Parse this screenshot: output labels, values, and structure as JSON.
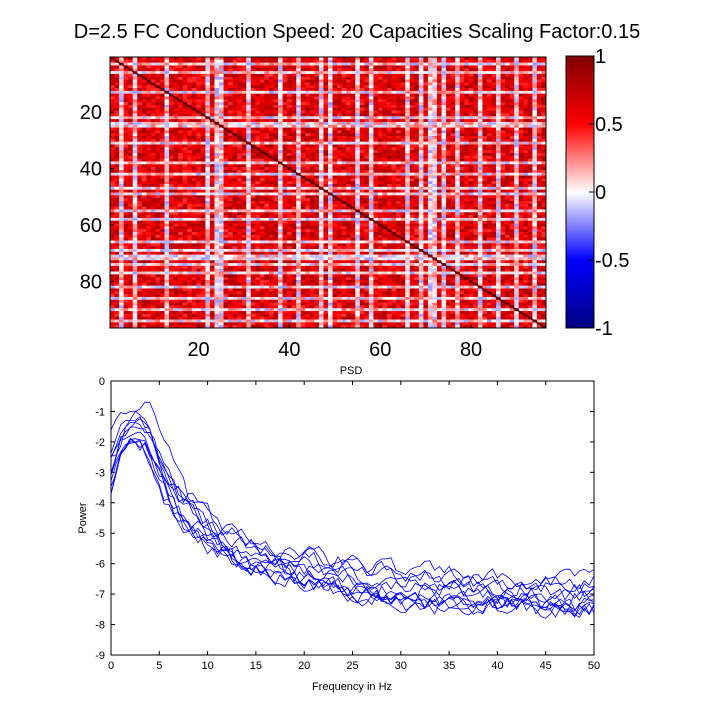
{
  "figure_title": "D=2.5 FC Conduction Speed: 20  Capacities Scaling Factor:0.15",
  "chart_data": [
    {
      "type": "heatmap",
      "title": "",
      "size": 96,
      "xticks": [
        20,
        40,
        60,
        80
      ],
      "yticks": [
        20,
        40,
        60,
        80
      ],
      "xlim": [
        0.5,
        96.5
      ],
      "ylim": [
        0.5,
        96.5
      ],
      "diagonal_value": 1,
      "colorbar": {
        "ticks": [
          1,
          0.5,
          0,
          -0.5,
          -1
        ],
        "tick_labels": [
          "1",
          "0.5",
          "0",
          "-0.5",
          "-1"
        ],
        "range": [
          -1,
          1
        ],
        "colormap": [
          "#800000",
          "#ff0000",
          "#ffffff",
          "#0000ff",
          "#000080"
        ]
      },
      "description_values": {
        "weak_rows": [
          3,
          6,
          13,
          22,
          24,
          25,
          31,
          38,
          42,
          47,
          49,
          55,
          58,
          66,
          69,
          71,
          72,
          74,
          77,
          82,
          86,
          90,
          94
        ],
        "typical_range": [
          0.4,
          0.85
        ],
        "weak_range": [
          -0.2,
          0.3
        ]
      }
    },
    {
      "type": "line",
      "title": "PSD",
      "xlabel": "Frequency in Hz",
      "ylabel": "Power",
      "xlim": [
        0,
        50
      ],
      "ylim": [
        -9,
        0
      ],
      "xticks": [
        0,
        5,
        10,
        15,
        20,
        25,
        30,
        35,
        40,
        45,
        50
      ],
      "yticks": [
        0,
        -1,
        -2,
        -3,
        -4,
        -5,
        -6,
        -7,
        -8,
        -9
      ],
      "line_color": "#0000ff",
      "series_count": 12,
      "envelope": {
        "x": [
          0,
          1,
          2,
          3,
          4,
          5,
          6,
          8,
          10,
          12,
          15,
          20,
          25,
          30,
          35,
          40,
          45,
          50
        ],
        "mean": [
          -3.0,
          -1.9,
          -1.5,
          -1.5,
          -1.9,
          -2.6,
          -3.3,
          -4.3,
          -4.9,
          -5.3,
          -5.8,
          -6.2,
          -6.5,
          -6.8,
          -6.9,
          -7.0,
          -7.1,
          -7.1
        ],
        "spread": [
          0.7,
          0.6,
          0.5,
          0.5,
          0.6,
          0.6,
          0.6,
          0.55,
          0.5,
          0.5,
          0.5,
          0.55,
          0.55,
          0.6,
          0.55,
          0.5,
          0.5,
          0.55
        ]
      }
    }
  ]
}
